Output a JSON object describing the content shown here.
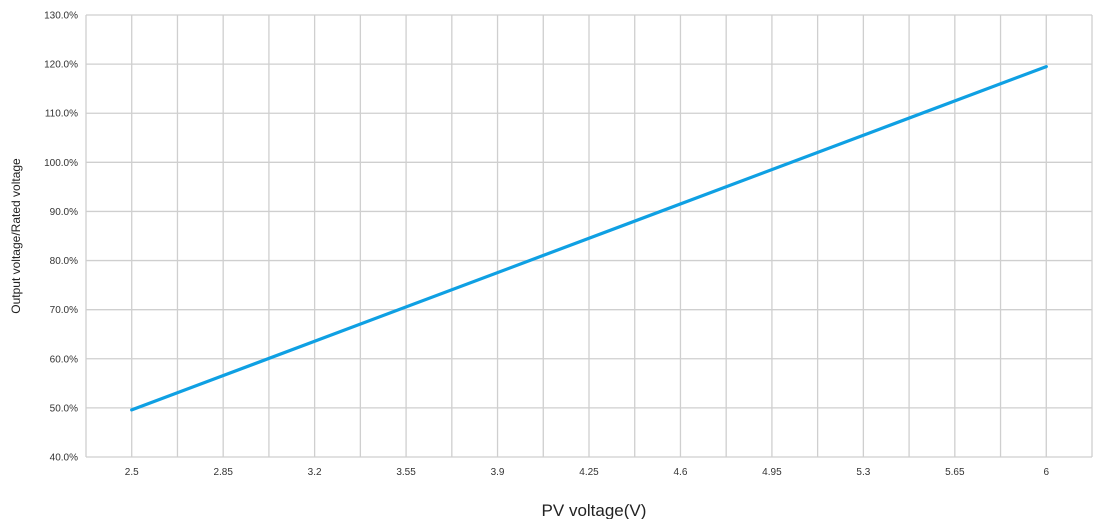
{
  "chart_data": {
    "type": "line",
    "title": "",
    "xlabel": "PV voltage(V)",
    "ylabel": "Output voltage/Rated voltage",
    "x_ticks": [
      "2.5",
      "2.85",
      "3.2",
      "3.55",
      "3.9",
      "4.25",
      "4.6",
      "4.95",
      "5.3",
      "5.65",
      "6"
    ],
    "y_ticks": [
      "40.0%",
      "50.0%",
      "60.0%",
      "70.0%",
      "80.0%",
      "90.0%",
      "100.0%",
      "110.0%",
      "120.0%",
      "130.0%"
    ],
    "xlim": [
      2.325,
      6.175
    ],
    "ylim": [
      40,
      130
    ],
    "grid": true,
    "legend": "none",
    "series": [
      {
        "color": "#0fa0e3",
        "x": [
          2.5,
          6.0
        ],
        "y": [
          49.6,
          119.5
        ]
      }
    ]
  }
}
